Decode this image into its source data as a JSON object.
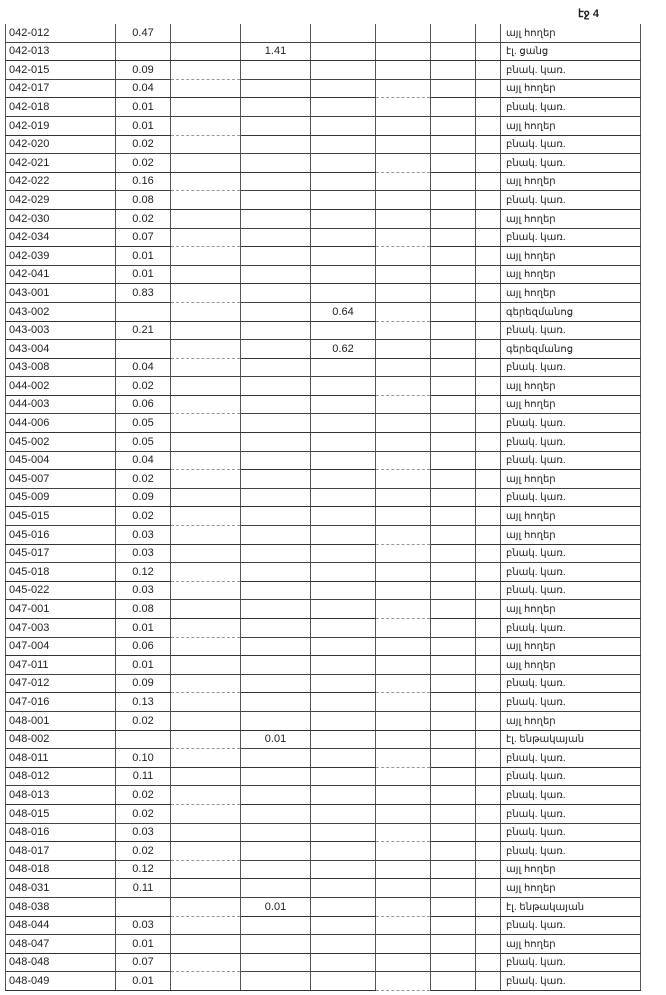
{
  "page_label": "էջ 4",
  "rows": [
    {
      "id": "042-012",
      "a": "0.47",
      "c": "",
      "d": "",
      "label": "այլ հողեր"
    },
    {
      "id": "042-013",
      "a": "",
      "c": "1.41",
      "d": "",
      "label": "էլ. ցանց"
    },
    {
      "id": "042-015",
      "a": "0.09",
      "c": "",
      "d": "",
      "label": "բնակ. կառ."
    },
    {
      "id": "042-017",
      "a": "0.04",
      "c": "",
      "d": "",
      "label": "այլ հողեր"
    },
    {
      "id": "042-018",
      "a": "0.01",
      "c": "",
      "d": "",
      "label": "բնակ. կառ."
    },
    {
      "id": "042-019",
      "a": "0.01",
      "c": "",
      "d": "",
      "label": "այլ հողեր"
    },
    {
      "id": "042-020",
      "a": "0.02",
      "c": "",
      "d": "",
      "label": "բնակ. կառ."
    },
    {
      "id": "042-021",
      "a": "0.02",
      "c": "",
      "d": "",
      "label": "բնակ. կառ."
    },
    {
      "id": "042-022",
      "a": "0.16",
      "c": "",
      "d": "",
      "label": "այլ հողեր"
    },
    {
      "id": "042-029",
      "a": "0.08",
      "c": "",
      "d": "",
      "label": "բնակ. կառ."
    },
    {
      "id": "042-030",
      "a": "0.02",
      "c": "",
      "d": "",
      "label": "այլ հողեր"
    },
    {
      "id": "042-034",
      "a": "0.07",
      "c": "",
      "d": "",
      "label": "բնակ. կառ."
    },
    {
      "id": "042-039",
      "a": "0.01",
      "c": "",
      "d": "",
      "label": "այլ հողեր"
    },
    {
      "id": "042-041",
      "a": "0.01",
      "c": "",
      "d": "",
      "label": "այլ հողեր"
    },
    {
      "id": "043-001",
      "a": "0.83",
      "c": "",
      "d": "",
      "label": "այլ հողեր"
    },
    {
      "id": "043-002",
      "a": "",
      "c": "",
      "d": "0.64",
      "label": "գերեզմանոց"
    },
    {
      "id": "043-003",
      "a": "0.21",
      "c": "",
      "d": "",
      "label": "բնակ. կառ."
    },
    {
      "id": "043-004",
      "a": "",
      "c": "",
      "d": "0.62",
      "label": "գերեզմանոց"
    },
    {
      "id": "043-008",
      "a": "0.04",
      "c": "",
      "d": "",
      "label": "բնակ. կառ."
    },
    {
      "id": "044-002",
      "a": "0.02",
      "c": "",
      "d": "",
      "label": "այլ հողեր"
    },
    {
      "id": "044-003",
      "a": "0.06",
      "c": "",
      "d": "",
      "label": "այլ հողեր"
    },
    {
      "id": "044-006",
      "a": "0.05",
      "c": "",
      "d": "",
      "label": "բնակ. կառ."
    },
    {
      "id": "045-002",
      "a": "0.05",
      "c": "",
      "d": "",
      "label": "բնակ. կառ."
    },
    {
      "id": "045-004",
      "a": "0.04",
      "c": "",
      "d": "",
      "label": "բնակ. կառ."
    },
    {
      "id": "045-007",
      "a": "0.02",
      "c": "",
      "d": "",
      "label": "այլ հողեր"
    },
    {
      "id": "045-009",
      "a": "0.09",
      "c": "",
      "d": "",
      "label": "բնակ. կառ."
    },
    {
      "id": "045-015",
      "a": "0.02",
      "c": "",
      "d": "",
      "label": "այլ հողեր"
    },
    {
      "id": "045-016",
      "a": "0.03",
      "c": "",
      "d": "",
      "label": "այլ հողեր"
    },
    {
      "id": "045-017",
      "a": "0.03",
      "c": "",
      "d": "",
      "label": "բնակ. կառ."
    },
    {
      "id": "045-018",
      "a": "0.12",
      "c": "",
      "d": "",
      "label": "բնակ. կառ."
    },
    {
      "id": "045-022",
      "a": "0.03",
      "c": "",
      "d": "",
      "label": "բնակ. կառ."
    },
    {
      "id": "047-001",
      "a": "0.08",
      "c": "",
      "d": "",
      "label": "այլ հողեր"
    },
    {
      "id": "047-003",
      "a": "0.01",
      "c": "",
      "d": "",
      "label": "բնակ. կառ."
    },
    {
      "id": "047-004",
      "a": "0.06",
      "c": "",
      "d": "",
      "label": "այլ հողեր"
    },
    {
      "id": "047-011",
      "a": "0.01",
      "c": "",
      "d": "",
      "label": "այլ հողեր"
    },
    {
      "id": "047-012",
      "a": "0.09",
      "c": "",
      "d": "",
      "label": "բնակ. կառ."
    },
    {
      "id": "047-016",
      "a": "0.13",
      "c": "",
      "d": "",
      "label": "բնակ. կառ."
    },
    {
      "id": "048-001",
      "a": "0.02",
      "c": "",
      "d": "",
      "label": "այլ հողեր"
    },
    {
      "id": "048-002",
      "a": "",
      "c": "0.01",
      "d": "",
      "label": "էլ. ենթակայան"
    },
    {
      "id": "048-011",
      "a": "0.10",
      "c": "",
      "d": "",
      "label": "բնակ. կառ."
    },
    {
      "id": "048-012",
      "a": "0.11",
      "c": "",
      "d": "",
      "label": "բնակ. կառ."
    },
    {
      "id": "048-013",
      "a": "0.02",
      "c": "",
      "d": "",
      "label": "բնակ. կառ."
    },
    {
      "id": "048-015",
      "a": "0.02",
      "c": "",
      "d": "",
      "label": "բնակ. կառ."
    },
    {
      "id": "048-016",
      "a": "0.03",
      "c": "",
      "d": "",
      "label": "բնակ. կառ."
    },
    {
      "id": "048-017",
      "a": "0.02",
      "c": "",
      "d": "",
      "label": "բնակ. կառ."
    },
    {
      "id": "048-018",
      "a": "0.12",
      "c": "",
      "d": "",
      "label": "այլ հողեր"
    },
    {
      "id": "048-031",
      "a": "0.11",
      "c": "",
      "d": "",
      "label": "այլ հողեր"
    },
    {
      "id": "048-038",
      "a": "",
      "c": "0.01",
      "d": "",
      "label": "էլ. ենթակայան"
    },
    {
      "id": "048-044",
      "a": "0.03",
      "c": "",
      "d": "",
      "label": "բնակ. կառ."
    },
    {
      "id": "048-047",
      "a": "0.01",
      "c": "",
      "d": "",
      "label": "այլ հողեր"
    },
    {
      "id": "048-048",
      "a": "0.07",
      "c": "",
      "d": "",
      "label": "բնակ. կառ."
    },
    {
      "id": "048-049",
      "a": "0.01",
      "c": "",
      "d": "",
      "label": "բնակ. կառ."
    }
  ]
}
